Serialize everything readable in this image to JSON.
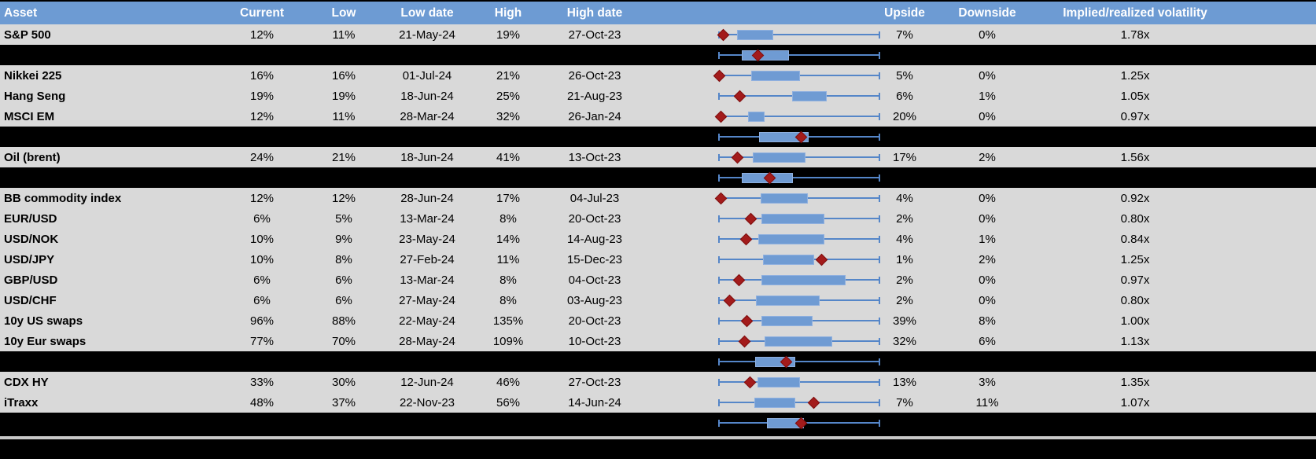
{
  "colors": {
    "header_bg": "#6D9BD3",
    "header_text": "#FFFFFF",
    "row_bg": "#D9D9D9",
    "separator_bg": "#000000",
    "box_fill": "#6F9BD3",
    "box_border": "#8FB0DF",
    "whisker": "#5586C8",
    "marker": "#A31B1B",
    "marker_border": "#7E0E0E",
    "divider": "#C8C8C8"
  },
  "columns": [
    "Asset",
    "Current",
    "Low",
    "Low date",
    "High",
    "High date",
    "Upside",
    "Downside",
    "Implied/realized volatility"
  ],
  "chart_data": {
    "type": "table",
    "note": "Each row embeds a horizontal box-whisker plot of the 1y implied volatility range (whiskers = low to high, positions normalized 0-1); red diamond = current level; black rows are unlabeled section-aggregate box plots.",
    "rows": [
      {
        "kind": "data",
        "asset": "S&P 500",
        "current": "12%",
        "low": "11%",
        "low_date": "21-May-24",
        "high": "19%",
        "high_date": "27-Oct-23",
        "upside": "7%",
        "downside": "0%",
        "implied_realized": "1.78x",
        "boxplot": {
          "whisker": [
            0,
            1
          ],
          "box": [
            0.113,
            0.338
          ],
          "marker": 0.025
        }
      },
      {
        "kind": "aggregate",
        "boxplot": {
          "whisker": [
            0,
            1
          ],
          "box": [
            0.14,
            0.435
          ],
          "marker": 0.245
        }
      },
      {
        "kind": "data",
        "asset": "Nikkei 225",
        "current": "16%",
        "low": "16%",
        "low_date": "01-Jul-24",
        "high": "21%",
        "high_date": "26-Oct-23",
        "upside": "5%",
        "downside": "0%",
        "implied_realized": "1.25x",
        "boxplot": {
          "whisker": [
            0,
            1
          ],
          "box": [
            0.201,
            0.503
          ],
          "marker": 0.0
        }
      },
      {
        "kind": "data",
        "asset": "Hang Seng",
        "current": "19%",
        "low": "19%",
        "low_date": "18-Jun-24",
        "high": "25%",
        "high_date": "21-Aug-23",
        "upside": "6%",
        "downside": "1%",
        "implied_realized": "1.05x",
        "boxplot": {
          "whisker": [
            0,
            1
          ],
          "box": [
            0.457,
            0.674
          ],
          "marker": 0.132
        }
      },
      {
        "kind": "data",
        "asset": "MSCI EM",
        "current": "12%",
        "low": "11%",
        "low_date": "28-Mar-24",
        "high": "32%",
        "high_date": "26-Jan-24",
        "upside": "20%",
        "downside": "0%",
        "implied_realized": "0.97x",
        "boxplot": {
          "whisker": [
            0,
            1
          ],
          "box": [
            0.18,
            0.283
          ],
          "marker": 0.01
        }
      },
      {
        "kind": "aggregate",
        "boxplot": {
          "whisker": [
            0,
            1
          ],
          "box": [
            0.25,
            0.557
          ],
          "marker": 0.511
        }
      },
      {
        "kind": "data",
        "asset": "Oil (brent)",
        "current": "24%",
        "low": "21%",
        "low_date": "18-Jun-24",
        "high": "41%",
        "high_date": "13-Oct-23",
        "upside": "17%",
        "downside": "2%",
        "implied_realized": "1.56x",
        "boxplot": {
          "whisker": [
            0,
            1
          ],
          "box": [
            0.212,
            0.539
          ],
          "marker": 0.114
        }
      },
      {
        "kind": "aggregate",
        "boxplot": {
          "whisker": [
            0,
            1
          ],
          "box": [
            0.14,
            0.46
          ],
          "marker": 0.315
        }
      },
      {
        "kind": "data",
        "asset": "BB commodity index",
        "current": "12%",
        "low": "12%",
        "low_date": "28-Jun-24",
        "high": "17%",
        "high_date": "04-Jul-23",
        "upside": "4%",
        "downside": "0%",
        "implied_realized": "0.92x",
        "boxplot": {
          "whisker": [
            0,
            1
          ],
          "box": [
            0.261,
            0.556
          ],
          "marker": 0.013
        }
      },
      {
        "kind": "data",
        "asset": "EUR/USD",
        "current": "6%",
        "low": "5%",
        "low_date": "13-Mar-24",
        "high": "8%",
        "high_date": "20-Oct-23",
        "upside": "2%",
        "downside": "0%",
        "implied_realized": "0.80x",
        "boxplot": {
          "whisker": [
            0,
            1
          ],
          "box": [
            0.263,
            0.659
          ],
          "marker": 0.198
        }
      },
      {
        "kind": "data",
        "asset": "USD/NOK",
        "current": "10%",
        "low": "9%",
        "low_date": "23-May-24",
        "high": "14%",
        "high_date": "14-Aug-23",
        "upside": "4%",
        "downside": "1%",
        "implied_realized": "0.84x",
        "boxplot": {
          "whisker": [
            0,
            1
          ],
          "box": [
            0.245,
            0.658
          ],
          "marker": 0.168
        }
      },
      {
        "kind": "data",
        "asset": "USD/JPY",
        "current": "10%",
        "low": "8%",
        "low_date": "27-Feb-24",
        "high": "11%",
        "high_date": "15-Dec-23",
        "upside": "1%",
        "downside": "2%",
        "implied_realized": "1.25x",
        "boxplot": {
          "whisker": [
            0,
            1
          ],
          "box": [
            0.275,
            0.593
          ],
          "marker": 0.642
        }
      },
      {
        "kind": "data",
        "asset": "GBP/USD",
        "current": "6%",
        "low": "6%",
        "low_date": "13-Mar-24",
        "high": "8%",
        "high_date": "04-Oct-23",
        "upside": "2%",
        "downside": "0%",
        "implied_realized": "0.97x",
        "boxplot": {
          "whisker": [
            0,
            1
          ],
          "box": [
            0.266,
            0.789
          ],
          "marker": 0.124
        }
      },
      {
        "kind": "data",
        "asset": "USD/CHF",
        "current": "6%",
        "low": "6%",
        "low_date": "27-May-24",
        "high": "8%",
        "high_date": "03-Aug-23",
        "upside": "2%",
        "downside": "0%",
        "implied_realized": "0.80x",
        "boxplot": {
          "whisker": [
            0,
            1
          ],
          "box": [
            0.229,
            0.626
          ],
          "marker": 0.065
        }
      },
      {
        "kind": "data",
        "asset": "10y US swaps",
        "current": "96%",
        "low": "88%",
        "low_date": "22-May-24",
        "high": "135%",
        "high_date": "20-Oct-23",
        "upside": "39%",
        "downside": "8%",
        "implied_realized": "1.00x",
        "boxplot": {
          "whisker": [
            0,
            1
          ],
          "box": [
            0.266,
            0.585
          ],
          "marker": 0.173
        }
      },
      {
        "kind": "data",
        "asset": "10y Eur swaps",
        "current": "77%",
        "low": "70%",
        "low_date": "28-May-24",
        "high": "109%",
        "high_date": "10-Oct-23",
        "upside": "32%",
        "downside": "6%",
        "implied_realized": "1.13x",
        "boxplot": {
          "whisker": [
            0,
            1
          ],
          "box": [
            0.283,
            0.708
          ],
          "marker": 0.157
        }
      },
      {
        "kind": "aggregate",
        "boxplot": {
          "whisker": [
            0,
            1
          ],
          "box": [
            0.225,
            0.474
          ],
          "marker": 0.418
        }
      },
      {
        "kind": "data",
        "asset": "CDX HY",
        "current": "33%",
        "low": "30%",
        "low_date": "12-Jun-24",
        "high": "46%",
        "high_date": "27-Oct-23",
        "upside": "13%",
        "downside": "3%",
        "implied_realized": "1.35x",
        "boxplot": {
          "whisker": [
            0,
            1
          ],
          "box": [
            0.242,
            0.503
          ],
          "marker": 0.193
        }
      },
      {
        "kind": "data",
        "asset": "iTraxx",
        "current": "48%",
        "low": "37%",
        "low_date": "22-Nov-23",
        "high": "56%",
        "high_date": "14-Jun-24",
        "upside": "7%",
        "downside": "11%",
        "implied_realized": "1.07x",
        "boxplot": {
          "whisker": [
            0,
            1
          ],
          "box": [
            0.222,
            0.474
          ],
          "marker": 0.593
        }
      },
      {
        "kind": "aggregate",
        "boxplot": {
          "whisker": [
            0,
            1
          ],
          "box": [
            0.299,
            0.528
          ],
          "marker": 0.511
        }
      }
    ]
  }
}
